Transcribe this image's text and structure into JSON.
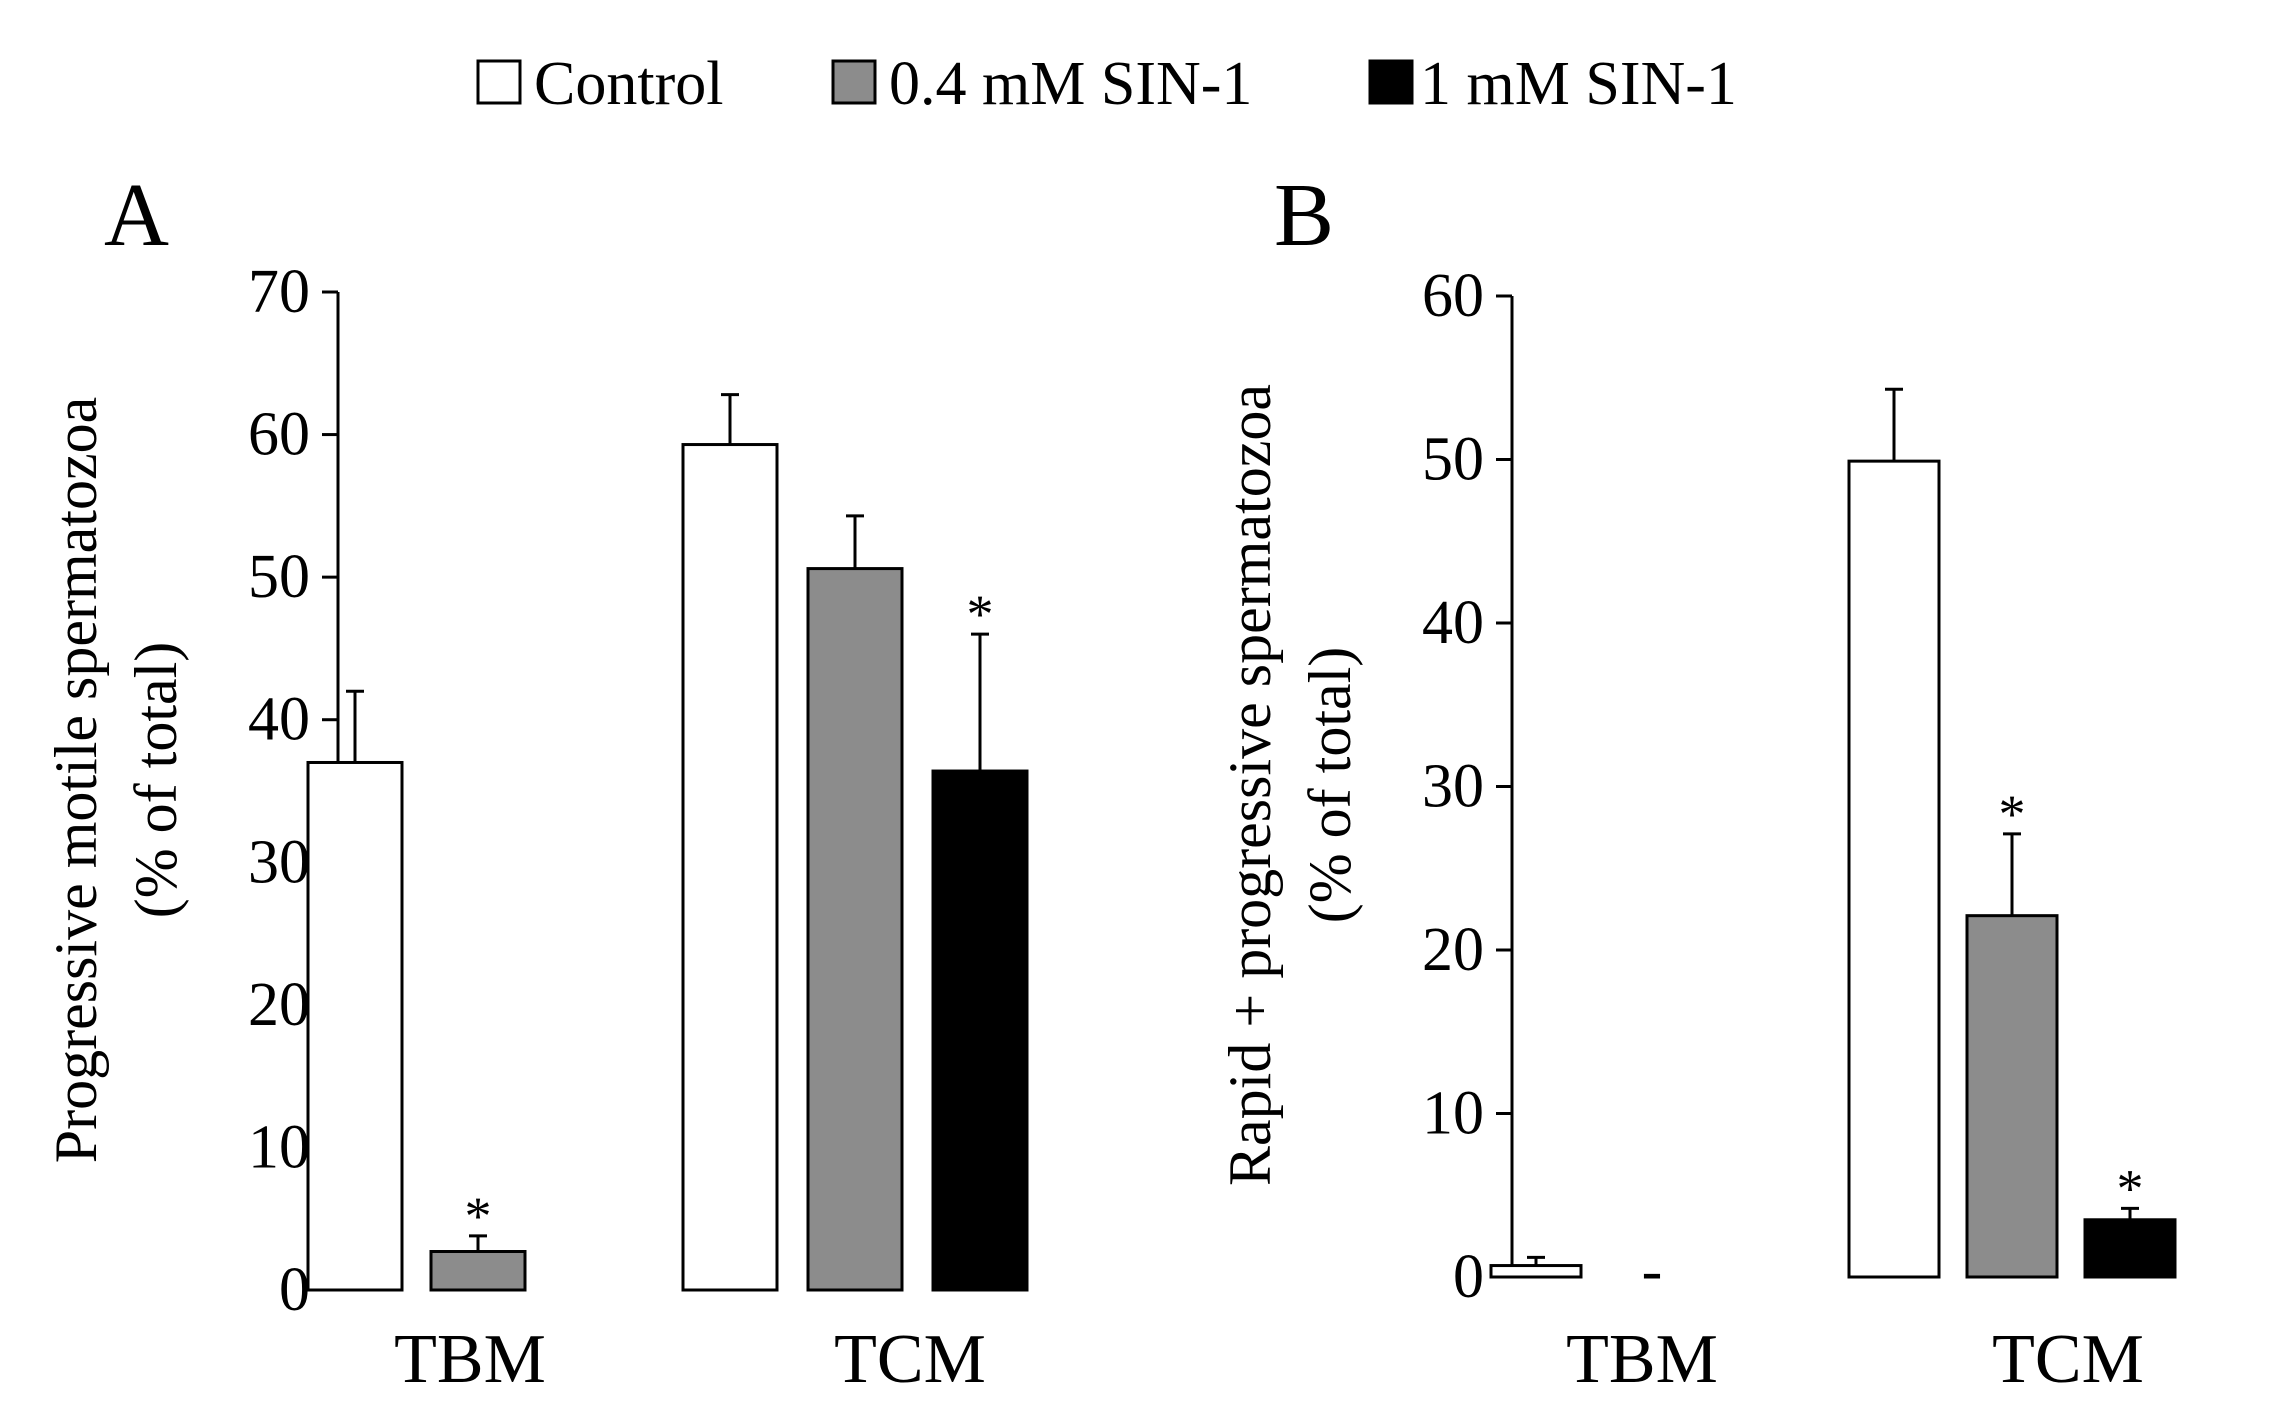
{
  "legend": {
    "items": [
      {
        "label": "Control",
        "color": "#ffffff"
      },
      {
        "label": "0.4 mM SIN-1",
        "color": "#8c8c8c"
      },
      {
        "label": "1 mM SIN-1",
        "color": "#000000"
      }
    ]
  },
  "chart_data": [
    {
      "panel": "A",
      "type": "bar",
      "ylabel": "Progressive motile spermatozoa",
      "ylabel_sub": "(% of total)",
      "ylim": [
        0,
        70
      ],
      "yticks": [
        0,
        10,
        20,
        30,
        40,
        50,
        60,
        70
      ],
      "categories": [
        "TBM",
        "TCM"
      ],
      "series": [
        {
          "name": "Control",
          "values": [
            37,
            59.3
          ],
          "errors": [
            5,
            3.5
          ],
          "significant": [
            false,
            false
          ]
        },
        {
          "name": "0.4 mM SIN-1",
          "values": [
            2.7,
            50.6
          ],
          "errors": [
            1.1,
            3.7
          ],
          "significant": [
            true,
            false
          ]
        },
        {
          "name": "1 mM SIN-1",
          "values": [
            null,
            36.4
          ],
          "errors": [
            null,
            9.6
          ],
          "significant": [
            false,
            true
          ]
        }
      ],
      "significance_marker": "*"
    },
    {
      "panel": "B",
      "type": "bar",
      "ylabel": "Rapid + progressive spermatozoa",
      "ylabel_sub": "(% of total)",
      "ylim": [
        0,
        60
      ],
      "yticks": [
        0,
        10,
        20,
        30,
        40,
        50,
        60
      ],
      "categories": [
        "TBM",
        "TCM"
      ],
      "series": [
        {
          "name": "Control",
          "values": [
            0.7,
            49.9
          ],
          "errors": [
            0.5,
            4.4
          ],
          "significant": [
            false,
            false
          ]
        },
        {
          "name": "0.4 mM SIN-1",
          "values": [
            0,
            22.1
          ],
          "errors": [
            null,
            5
          ],
          "significant": [
            false,
            true
          ]
        },
        {
          "name": "1 mM SIN-1",
          "values": [
            null,
            3.5
          ],
          "errors": [
            null,
            0.7
          ],
          "significant": [
            false,
            true
          ]
        }
      ],
      "significance_marker": "*",
      "zero_marker": "-"
    }
  ]
}
